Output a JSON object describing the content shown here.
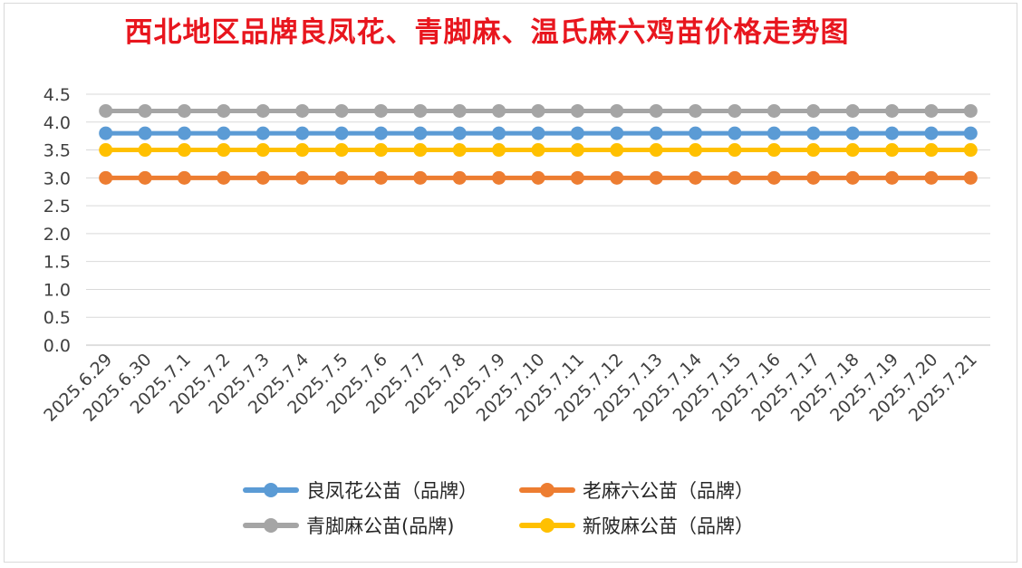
{
  "chart_data": {
    "type": "line",
    "title": "西北地区品牌良凤花、青脚麻、温氏麻六鸡苗价格走势图",
    "categories": [
      "2025.6.29",
      "2025.6.30",
      "2025.7.1",
      "2025.7.2",
      "2025.7.3",
      "2025.7.4",
      "2025.7.5",
      "2025.7.6",
      "2025.7.7",
      "2025.7.8",
      "2025.7.9",
      "2025.7.10",
      "2025.7.11",
      "2025.7.12",
      "2025.7.13",
      "2025.7.14",
      "2025.7.15",
      "2025.7.16",
      "2025.7.17",
      "2025.7.18",
      "2025.7.19",
      "2025.7.20",
      "2025.7.21"
    ],
    "ylim": [
      0,
      4.5
    ],
    "yticks": [
      "0.0",
      "0.5",
      "1.0",
      "1.5",
      "2.0",
      "2.5",
      "3.0",
      "3.5",
      "4.0",
      "4.5"
    ],
    "grid": true,
    "legend_position": "bottom",
    "series": [
      {
        "name": "良凤花公苗（品牌）",
        "color": "#5b9bd5",
        "values": [
          3.8,
          3.8,
          3.8,
          3.8,
          3.8,
          3.8,
          3.8,
          3.8,
          3.8,
          3.8,
          3.8,
          3.8,
          3.8,
          3.8,
          3.8,
          3.8,
          3.8,
          3.8,
          3.8,
          3.8,
          3.8,
          3.8,
          3.8
        ]
      },
      {
        "name": "老麻六公苗（品牌）",
        "color": "#ed7d31",
        "values": [
          3.0,
          3.0,
          3.0,
          3.0,
          3.0,
          3.0,
          3.0,
          3.0,
          3.0,
          3.0,
          3.0,
          3.0,
          3.0,
          3.0,
          3.0,
          3.0,
          3.0,
          3.0,
          3.0,
          3.0,
          3.0,
          3.0,
          3.0
        ]
      },
      {
        "name": "青脚麻公苗(品牌)",
        "color": "#a5a5a5",
        "values": [
          4.2,
          4.2,
          4.2,
          4.2,
          4.2,
          4.2,
          4.2,
          4.2,
          4.2,
          4.2,
          4.2,
          4.2,
          4.2,
          4.2,
          4.2,
          4.2,
          4.2,
          4.2,
          4.2,
          4.2,
          4.2,
          4.2,
          4.2
        ]
      },
      {
        "name": "新陂麻公苗（品牌）",
        "color": "#ffc000",
        "values": [
          3.5,
          3.5,
          3.5,
          3.5,
          3.5,
          3.5,
          3.5,
          3.5,
          3.5,
          3.5,
          3.5,
          3.5,
          3.5,
          3.5,
          3.5,
          3.5,
          3.5,
          3.5,
          3.5,
          3.5,
          3.5,
          3.5,
          3.5
        ]
      }
    ]
  }
}
